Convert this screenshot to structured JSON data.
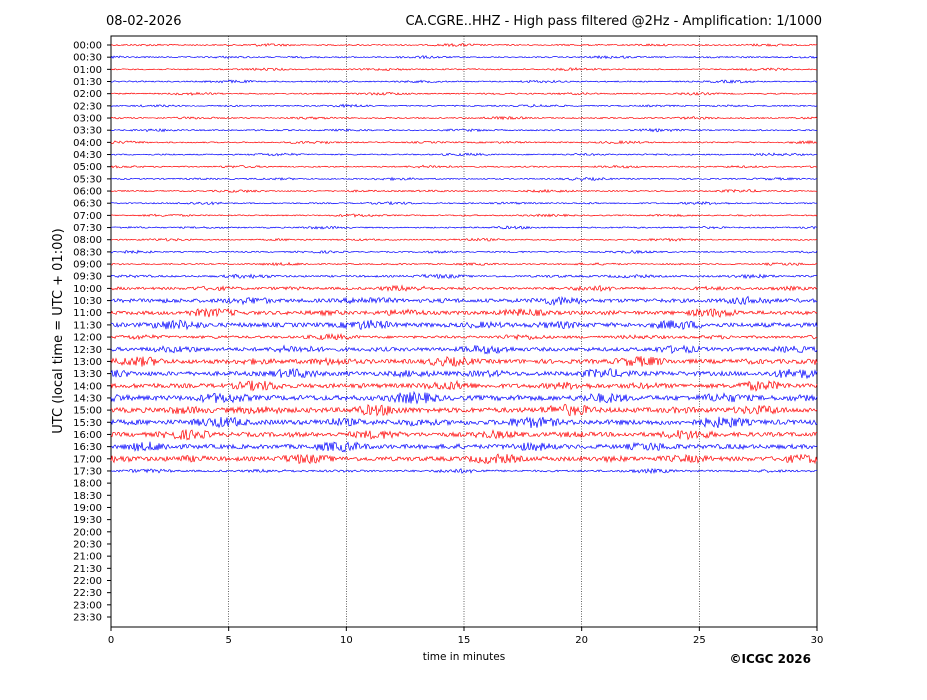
{
  "chart_data": {
    "type": "helicorder",
    "title_left": "08-02-2026",
    "title": "CA.CGRE..HHZ - High pass filtered @2Hz - Amplification: 1/1000",
    "y_label": "UTC (local time = UTC + 01:00)",
    "x_label": "time in minutes",
    "credit": "©ICGC 2026",
    "categories": [
      "00:00",
      "00:30",
      "01:00",
      "01:30",
      "02:00",
      "02:30",
      "03:00",
      "03:30",
      "04:00",
      "04:30",
      "05:00",
      "05:30",
      "06:00",
      "06:30",
      "07:00",
      "07:30",
      "08:00",
      "08:30",
      "09:00",
      "09:30",
      "10:00",
      "10:30",
      "11:00",
      "11:30",
      "12:00",
      "12:30",
      "13:00",
      "13:30",
      "14:00",
      "14:30",
      "15:00",
      "15:30",
      "16:00",
      "16:30",
      "17:00",
      "17:30",
      "18:00",
      "18:30",
      "19:00",
      "19:30",
      "20:00",
      "20:30",
      "21:00",
      "21:30",
      "22:00",
      "22:30",
      "23:00",
      "23:30"
    ],
    "values": [
      0.1,
      0.1,
      0.1,
      0.1,
      0.1,
      0.1,
      0.1,
      0.1,
      0.1,
      0.1,
      0.1,
      0.1,
      0.1,
      0.1,
      0.1,
      0.1,
      0.1,
      0.1,
      0.1,
      0.15,
      0.2,
      0.3,
      0.3,
      0.35,
      0.2,
      0.3,
      0.35,
      0.35,
      0.35,
      0.4,
      0.4,
      0.4,
      0.35,
      0.35,
      0.35,
      0.15,
      null,
      null,
      null,
      null,
      null,
      null,
      null,
      null,
      null,
      null,
      null,
      null
    ],
    "colors": [
      "#ff0000",
      "#0000ff"
    ],
    "xlim": [
      0,
      30
    ],
    "xticks": [
      0,
      5,
      10,
      15,
      20,
      25,
      30
    ],
    "grid": true
  }
}
